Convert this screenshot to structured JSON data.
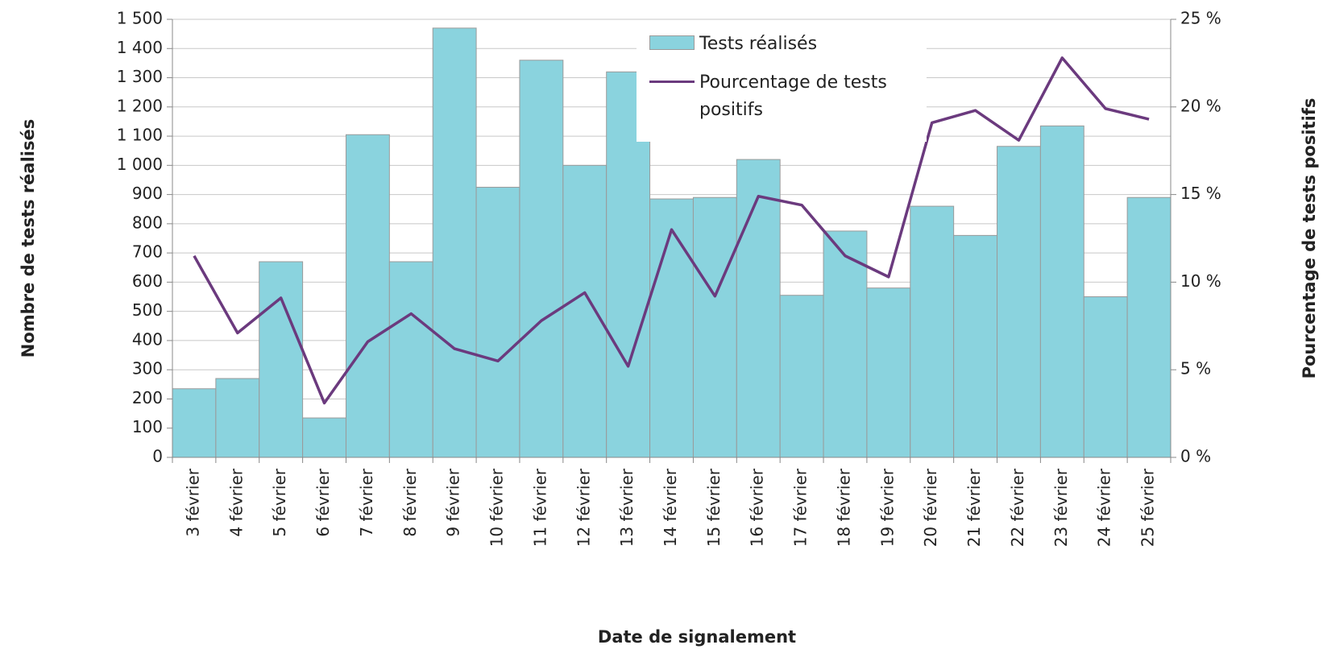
{
  "chart_data": {
    "type": "bar",
    "x_label": "Date de signalement",
    "y_label": "Nombre de tests réalisés",
    "y2_label": "Pourcentage de tests positifs",
    "categories": [
      "3 février",
      "4 février",
      "5 février",
      "6 février",
      "7 février",
      "8 février",
      "9 février",
      "10 février",
      "11 février",
      "12 février",
      "13 février",
      "14 février",
      "15 février",
      "16 février",
      "17 février",
      "18 février",
      "19 février",
      "20 février",
      "21 février",
      "22 février",
      "23 février",
      "24 février",
      "25 février"
    ],
    "series": [
      {
        "name": "Tests réalisés",
        "type": "bar",
        "color": "#8ad3de",
        "values": [
          235,
          270,
          670,
          135,
          1105,
          670,
          1470,
          925,
          1360,
          1000,
          1320,
          885,
          890,
          1020,
          555,
          775,
          580,
          860,
          760,
          1065,
          1135,
          550,
          890
        ]
      },
      {
        "name": "Pourcentage de tests positifs",
        "type": "line",
        "color": "#6b3a7e",
        "axis": "y2",
        "values": [
          11.5,
          7.1,
          9.1,
          3.1,
          6.6,
          8.2,
          6.2,
          5.5,
          7.8,
          9.4,
          5.2,
          13.0,
          9.2,
          14.9,
          14.4,
          11.5,
          10.3,
          19.1,
          19.8,
          18.1,
          22.8,
          19.9,
          19.3
        ]
      }
    ],
    "ylim": [
      0,
      1500
    ],
    "yticks": [
      0,
      100,
      200,
      300,
      400,
      500,
      600,
      700,
      800,
      900,
      {
        "value": 1000,
        "label": "1 000"
      },
      {
        "value": 1100,
        "label": "1 100"
      },
      {
        "value": 1200,
        "label": "1 200"
      },
      {
        "value": 1300,
        "label": "1 300"
      },
      {
        "value": 1400,
        "label": "1 400"
      },
      {
        "value": 1500,
        "label": "1 500"
      }
    ],
    "y2lim": [
      0,
      25
    ],
    "y2ticks": [
      {
        "value": 0,
        "label": "0 %"
      },
      {
        "value": 5,
        "label": "5 %"
      },
      {
        "value": 10,
        "label": "10 %"
      },
      {
        "value": 15,
        "label": "15 %"
      },
      {
        "value": 20,
        "label": "20 %"
      },
      {
        "value": 25,
        "label": "25 %"
      }
    ],
    "grid": true,
    "legend": "top"
  }
}
